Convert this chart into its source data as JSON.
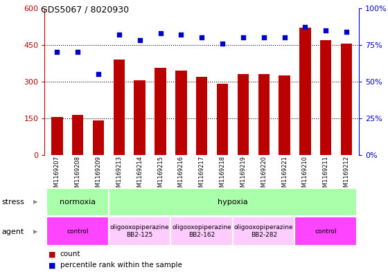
{
  "title": "GDS5067 / 8020930",
  "samples": [
    "GSM1169207",
    "GSM1169208",
    "GSM1169209",
    "GSM1169213",
    "GSM1169214",
    "GSM1169215",
    "GSM1169216",
    "GSM1169217",
    "GSM1169218",
    "GSM1169219",
    "GSM1169220",
    "GSM1169221",
    "GSM1169210",
    "GSM1169211",
    "GSM1169212"
  ],
  "counts": [
    155,
    165,
    140,
    390,
    305,
    355,
    345,
    320,
    290,
    330,
    330,
    325,
    520,
    470,
    455
  ],
  "percentiles": [
    70,
    70,
    55,
    82,
    78,
    83,
    82,
    80,
    76,
    80,
    80,
    80,
    87,
    85,
    84
  ],
  "bar_color": "#bb0000",
  "dot_color": "#0000cc",
  "left_ylim": [
    0,
    600
  ],
  "right_ylim": [
    0,
    100
  ],
  "left_yticks": [
    0,
    150,
    300,
    450,
    600
  ],
  "right_yticks": [
    0,
    25,
    50,
    75,
    100
  ],
  "right_yticklabels": [
    "0%",
    "25%",
    "50%",
    "75%",
    "100%"
  ],
  "hgrid_vals": [
    150,
    300,
    450
  ],
  "stress_segments": [
    {
      "text": "normoxia",
      "start": 0,
      "end": 2,
      "color": "#aaffaa"
    },
    {
      "text": "hypoxia",
      "start": 3,
      "end": 14,
      "color": "#aaffaa"
    }
  ],
  "agent_segments": [
    {
      "text": "control",
      "start": 0,
      "end": 2,
      "color": "#ff44ff"
    },
    {
      "text": "oligooxopiperazine\nBB2-125",
      "start": 3,
      "end": 5,
      "color": "#ffccff"
    },
    {
      "text": "oligooxopiperazine\nBB2-162",
      "start": 6,
      "end": 8,
      "color": "#ffccff"
    },
    {
      "text": "oligooxopiperazine\nBB2-282",
      "start": 9,
      "end": 11,
      "color": "#ffccff"
    },
    {
      "text": "control",
      "start": 12,
      "end": 14,
      "color": "#ff44ff"
    }
  ],
  "legend_count_label": "count",
  "legend_pct_label": "percentile rank within the sample",
  "stress_row_label": "stress",
  "agent_row_label": "agent",
  "bg_color": "#ffffff"
}
